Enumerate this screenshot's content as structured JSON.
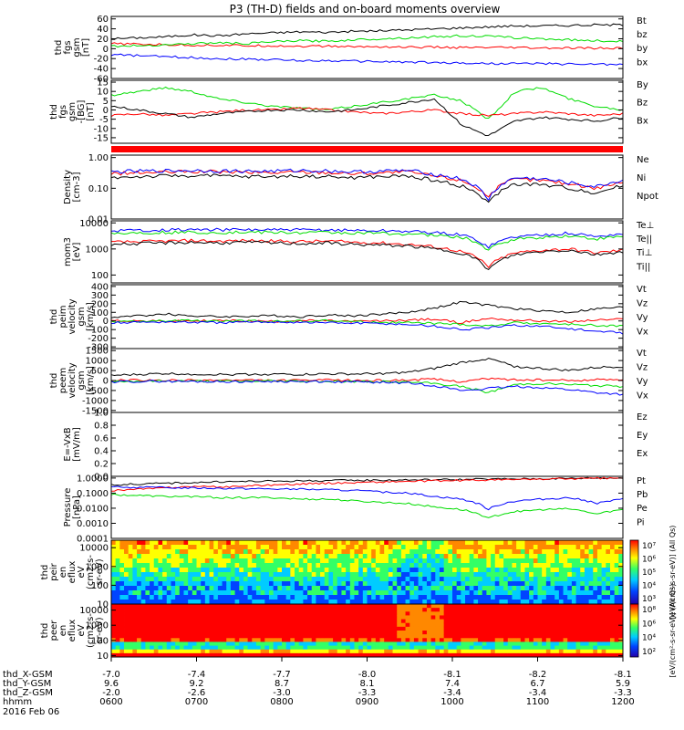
{
  "title": "P3 (TH-D) fields and on-board moments overview",
  "chart_data": [
    {
      "type": "line",
      "ylabel": [
        "thd",
        "fgs",
        "gsm",
        "[nT]"
      ],
      "yticks": [
        "60",
        "40",
        "20",
        "0",
        "-20",
        "-40",
        "-60"
      ],
      "ylim": [
        -60,
        65
      ],
      "legend": [
        {
          "name": "Bt",
          "color": "#000000"
        },
        {
          "name": "bz",
          "color": "#ff0000"
        },
        {
          "name": "by",
          "color": "#00dd00"
        },
        {
          "name": "bx",
          "color": "#0000ff"
        }
      ],
      "series": [
        {
          "name": "Bt",
          "color": "#000000",
          "values": [
            20,
            22,
            24,
            28,
            26,
            30,
            32,
            34,
            33,
            35,
            36,
            38,
            40,
            42,
            44,
            46,
            46,
            47,
            48,
            48
          ]
        },
        {
          "name": "bz",
          "color": "#ff0000",
          "values": [
            10,
            9,
            8,
            7,
            7,
            6,
            6,
            5,
            5,
            4,
            4,
            3,
            3,
            2,
            2,
            2,
            1,
            1,
            1,
            1
          ]
        },
        {
          "name": "by",
          "color": "#00dd00",
          "values": [
            5,
            6,
            8,
            10,
            12,
            10,
            14,
            16,
            15,
            18,
            20,
            22,
            24,
            26,
            25,
            22,
            20,
            18,
            16,
            15
          ]
        },
        {
          "name": "bx",
          "color": "#0000ff",
          "values": [
            -12,
            -14,
            -16,
            -18,
            -20,
            -21,
            -22,
            -24,
            -24,
            -25,
            -26,
            -27,
            -28,
            -29,
            -30,
            -30,
            -30,
            -31,
            -31,
            -32
          ]
        }
      ]
    },
    {
      "type": "line",
      "ylabel": [
        "thd",
        "fgs",
        "gsm",
        "-[BG]",
        "[nT]"
      ],
      "yticks": [
        "15",
        "10",
        "5",
        "0",
        "-5",
        "-10",
        "-15"
      ],
      "ylim": [
        -18,
        16
      ],
      "legend": [
        {
          "name": "By",
          "color": "#00dd00"
        },
        {
          "name": "Bz",
          "color": "#ff0000"
        },
        {
          "name": "Bx",
          "color": "#000000"
        }
      ],
      "series": [
        {
          "name": "By",
          "color": "#00dd00",
          "values": [
            8,
            10,
            12,
            10,
            6,
            4,
            2,
            1,
            0,
            2,
            4,
            6,
            8,
            5,
            -5,
            10,
            12,
            6,
            2,
            0
          ]
        },
        {
          "name": "Bz",
          "color": "#ff0000",
          "values": [
            -3,
            -2,
            -3,
            -2,
            -1,
            0,
            0,
            1,
            0,
            -1,
            -2,
            -1,
            0,
            -2,
            -3,
            -2,
            -1,
            -2,
            -3,
            -2
          ]
        },
        {
          "name": "Bx",
          "color": "#000000",
          "values": [
            2,
            0,
            -2,
            -4,
            -2,
            -1,
            0,
            0,
            -1,
            0,
            2,
            4,
            6,
            -8,
            -14,
            -6,
            -4,
            -5,
            -6,
            -4
          ]
        }
      ]
    },
    {
      "type": "line",
      "yscale": "log",
      "ylabel": [
        "Density",
        "[cm-3]"
      ],
      "yticks": [
        "1.00",
        "0.10",
        "0.01"
      ],
      "ylim": [
        0.01,
        1.2
      ],
      "legend": [
        {
          "name": "Ne",
          "color": "#ff0000"
        },
        {
          "name": "Ni",
          "color": "#000000"
        },
        {
          "name": "Npot",
          "color": "#0000ff"
        }
      ],
      "series": [
        {
          "name": "Ne",
          "color": "#ff0000",
          "values": [
            0.3,
            0.32,
            0.33,
            0.35,
            0.34,
            0.33,
            0.32,
            0.34,
            0.33,
            0.3,
            0.32,
            0.34,
            0.25,
            0.18,
            0.05,
            0.2,
            0.18,
            0.14,
            0.1,
            0.16
          ]
        },
        {
          "name": "Ni",
          "color": "#000000",
          "values": [
            0.22,
            0.24,
            0.25,
            0.26,
            0.25,
            0.24,
            0.24,
            0.25,
            0.24,
            0.22,
            0.24,
            0.25,
            0.18,
            0.12,
            0.03,
            0.14,
            0.13,
            0.1,
            0.07,
            0.12
          ]
        },
        {
          "name": "Npot",
          "color": "#0000ff",
          "values": [
            0.34,
            0.36,
            0.37,
            0.38,
            0.37,
            0.36,
            0.36,
            0.38,
            0.37,
            0.34,
            0.36,
            0.38,
            0.28,
            0.2,
            0.04,
            0.22,
            0.2,
            0.15,
            0.11,
            0.18
          ]
        }
      ]
    },
    {
      "type": "line",
      "yscale": "log",
      "ylabel": [
        "mom3",
        "[eV]"
      ],
      "yticks": [
        "10000",
        "1000",
        "100"
      ],
      "ylim": [
        50,
        12000
      ],
      "legend": [
        {
          "name": "Te⊥",
          "color": "#ff0000"
        },
        {
          "name": "Te||",
          "color": "#000000"
        },
        {
          "name": "Ti⊥",
          "color": "#0000ff"
        },
        {
          "name": "Ti||",
          "color": "#00dd00"
        }
      ],
      "series": [
        {
          "name": "Te⊥",
          "color": "#ff0000",
          "values": [
            1800,
            1900,
            2000,
            2100,
            2000,
            2100,
            2000,
            1900,
            2000,
            1800,
            1700,
            1500,
            1200,
            800,
            200,
            700,
            900,
            1000,
            700,
            900
          ]
        },
        {
          "name": "Te||",
          "color": "#000000",
          "values": [
            1500,
            1600,
            1700,
            1800,
            1700,
            1800,
            1700,
            1600,
            1700,
            1500,
            1400,
            1300,
            1000,
            700,
            150,
            600,
            800,
            900,
            600,
            800
          ]
        },
        {
          "name": "Ti⊥",
          "color": "#0000ff",
          "values": [
            5000,
            5200,
            5400,
            5500,
            5400,
            5500,
            5400,
            5300,
            5400,
            5200,
            5000,
            4800,
            4200,
            3500,
            1200,
            3000,
            3500,
            4000,
            3000,
            3800
          ]
        },
        {
          "name": "Ti||",
          "color": "#00dd00",
          "values": [
            4000,
            4200,
            4300,
            4400,
            4300,
            4400,
            4300,
            4200,
            4300,
            4100,
            4000,
            3800,
            3300,
            2800,
            900,
            2400,
            2800,
            3200,
            2400,
            3000
          ]
        }
      ]
    },
    {
      "type": "line",
      "ylabel": [
        "thd",
        "peim",
        "velocity",
        "gsm",
        "[km/s]"
      ],
      "yticks": [
        "400",
        "300",
        "200",
        "100",
        "0",
        "-100",
        "-200",
        "-300"
      ],
      "ylim": [
        -320,
        420
      ],
      "legend": [
        {
          "name": "Vt",
          "color": "#000000"
        },
        {
          "name": "Vz",
          "color": "#ff0000"
        },
        {
          "name": "Vy",
          "color": "#00dd00"
        },
        {
          "name": "Vx",
          "color": "#0000ff"
        }
      ],
      "series": [
        {
          "name": "Vt",
          "color": "#000000",
          "values": [
            40,
            60,
            80,
            60,
            50,
            55,
            60,
            50,
            70,
            60,
            80,
            100,
            150,
            220,
            180,
            140,
            120,
            100,
            140,
            160
          ]
        },
        {
          "name": "Vz",
          "color": "#ff0000",
          "values": [
            5,
            0,
            -5,
            0,
            5,
            0,
            -5,
            5,
            0,
            -5,
            0,
            10,
            20,
            -20,
            30,
            10,
            0,
            -10,
            10,
            20
          ]
        },
        {
          "name": "Vy",
          "color": "#00dd00",
          "values": [
            -10,
            -5,
            0,
            5,
            -5,
            0,
            -5,
            0,
            5,
            -10,
            -15,
            -20,
            -30,
            -40,
            -60,
            -20,
            -30,
            -40,
            -50,
            -60
          ]
        },
        {
          "name": "Vx",
          "color": "#0000ff",
          "values": [
            -20,
            -15,
            -10,
            -15,
            -20,
            -15,
            -10,
            -15,
            -20,
            -25,
            -30,
            -40,
            -60,
            -100,
            -80,
            -50,
            -60,
            -90,
            -120,
            -140
          ]
        }
      ]
    },
    {
      "type": "line",
      "ylabel": [
        "thd",
        "peem",
        "velocity",
        "gsm",
        "[km/s]"
      ],
      "yticks": [
        "1500",
        "1000",
        "500",
        "0",
        "-500",
        "-1000",
        "-1500"
      ],
      "ylim": [
        -1600,
        1600
      ],
      "legend": [
        {
          "name": "Vt",
          "color": "#000000"
        },
        {
          "name": "Vz",
          "color": "#ff0000"
        },
        {
          "name": "Vy",
          "color": "#00dd00"
        },
        {
          "name": "Vx",
          "color": "#0000ff"
        }
      ],
      "series": [
        {
          "name": "Vt",
          "color": "#000000",
          "values": [
            250,
            300,
            350,
            320,
            300,
            310,
            320,
            300,
            330,
            320,
            350,
            400,
            600,
            900,
            1100,
            700,
            600,
            500,
            650,
            700
          ]
        },
        {
          "name": "Vz",
          "color": "#ff0000",
          "values": [
            20,
            10,
            0,
            10,
            20,
            10,
            0,
            10,
            20,
            10,
            0,
            30,
            60,
            -50,
            100,
            40,
            20,
            0,
            40,
            60
          ]
        },
        {
          "name": "Vy",
          "color": "#00dd00",
          "values": [
            -40,
            -30,
            -20,
            -30,
            -40,
            -30,
            -20,
            -30,
            -40,
            -50,
            -60,
            -80,
            -150,
            -300,
            -600,
            -200,
            -150,
            -200,
            -250,
            -300
          ]
        },
        {
          "name": "Vx",
          "color": "#0000ff",
          "values": [
            -60,
            -50,
            -40,
            -50,
            -60,
            -50,
            -40,
            -50,
            -60,
            -70,
            -90,
            -120,
            -250,
            -500,
            -400,
            -300,
            -350,
            -450,
            -600,
            -700
          ]
        }
      ]
    },
    {
      "type": "line",
      "ylabel": [
        "E=-VxB",
        "[mV/m]"
      ],
      "yticks": [
        "1.0",
        "0.8",
        "0.6",
        "0.4",
        "0.2",
        "0.0"
      ],
      "ylim": [
        0,
        1
      ],
      "legend": [
        {
          "name": "Ez",
          "color": "#ff0000"
        },
        {
          "name": "Ey",
          "color": "#00dd00"
        },
        {
          "name": "Ex",
          "color": "#0000ff"
        }
      ],
      "series": []
    },
    {
      "type": "line",
      "yscale": "log",
      "ylabel": [
        "Pressure",
        "[nPa]"
      ],
      "yticks": [
        "1.0000",
        "0.1000",
        "0.0100",
        "0.0010",
        "0.0001"
      ],
      "ylim": [
        0.0001,
        1.3
      ],
      "legend": [
        {
          "name": "Pt",
          "color": "#000000"
        },
        {
          "name": "Pb",
          "color": "#ff0000"
        },
        {
          "name": "Pe",
          "color": "#00dd00"
        },
        {
          "name": "Pi",
          "color": "#0000ff"
        }
      ],
      "series": [
        {
          "name": "Pt",
          "color": "#000000",
          "values": [
            0.35,
            0.4,
            0.45,
            0.5,
            0.55,
            0.6,
            0.62,
            0.65,
            0.68,
            0.7,
            0.72,
            0.75,
            0.78,
            0.8,
            0.85,
            0.88,
            0.9,
            0.95,
            1.0,
            1.0
          ]
        },
        {
          "name": "Pb",
          "color": "#ff0000",
          "values": [
            0.15,
            0.18,
            0.22,
            0.28,
            0.25,
            0.3,
            0.35,
            0.4,
            0.45,
            0.5,
            0.55,
            0.6,
            0.65,
            0.7,
            0.75,
            0.8,
            0.85,
            0.9,
            0.95,
            1.0
          ]
        },
        {
          "name": "Pe",
          "color": "#00dd00",
          "values": [
            0.08,
            0.07,
            0.06,
            0.06,
            0.05,
            0.05,
            0.05,
            0.04,
            0.04,
            0.03,
            0.025,
            0.02,
            0.012,
            0.008,
            0.002,
            0.006,
            0.008,
            0.009,
            0.004,
            0.008
          ]
        },
        {
          "name": "Pi",
          "color": "#0000ff",
          "values": [
            0.25,
            0.24,
            0.23,
            0.22,
            0.21,
            0.2,
            0.19,
            0.18,
            0.17,
            0.15,
            0.12,
            0.1,
            0.06,
            0.04,
            0.008,
            0.03,
            0.04,
            0.05,
            0.02,
            0.04
          ]
        }
      ]
    },
    {
      "type": "heatmap",
      "yscale": "log",
      "ylabel": [
        "thd",
        "peir",
        "en",
        "eflux",
        "eV",
        "(cm2-s-",
        "sr-eV)"
      ],
      "yticks": [
        "10000",
        "1000",
        "100",
        "10"
      ],
      "ylim": [
        10,
        25000
      ]
    },
    {
      "type": "heatmap",
      "yscale": "log",
      "ylabel": [
        "thd",
        "peer",
        "en",
        "eflux",
        "eV",
        "(cm2-s-",
        "sr-eV)"
      ],
      "yticks": [
        "10000",
        "1000",
        "100",
        "10"
      ],
      "ylim": [
        8,
        25000
      ]
    }
  ],
  "colorbars": [
    {
      "ticks": [
        "10⁷",
        "10⁶",
        "10⁵",
        "10⁴",
        "10³"
      ],
      "label": "[eV/(cm²-s-sr-eV)] (All Qs)"
    },
    {
      "ticks": [
        "10⁸",
        "10⁶",
        "10⁴",
        "10²"
      ],
      "label": "[eV/(cm²-s-sr-eV)] (All Qs)"
    }
  ],
  "x_axis": {
    "row_labels": [
      "thd_X-GSM",
      "thd_Y-GSM",
      "thd_Z-GSM",
      "hhmm",
      "2016 Feb 06"
    ],
    "ticks": [
      {
        "x": "-7.0",
        "y": "9.6",
        "z": "-2.0",
        "t": "0600"
      },
      {
        "x": "-7.4",
        "y": "9.2",
        "z": "-2.6",
        "t": "0700"
      },
      {
        "x": "-7.7",
        "y": "8.7",
        "z": "-3.0",
        "t": "0800"
      },
      {
        "x": "-8.0",
        "y": "8.1",
        "z": "-3.3",
        "t": "0900"
      },
      {
        "x": "-8.1",
        "y": "7.4",
        "z": "-3.4",
        "t": "1000"
      },
      {
        "x": "-8.2",
        "y": "6.7",
        "z": "-3.4",
        "t": "1100"
      },
      {
        "x": "-8.1",
        "y": "5.9",
        "z": "-3.3",
        "t": "1200"
      }
    ]
  }
}
